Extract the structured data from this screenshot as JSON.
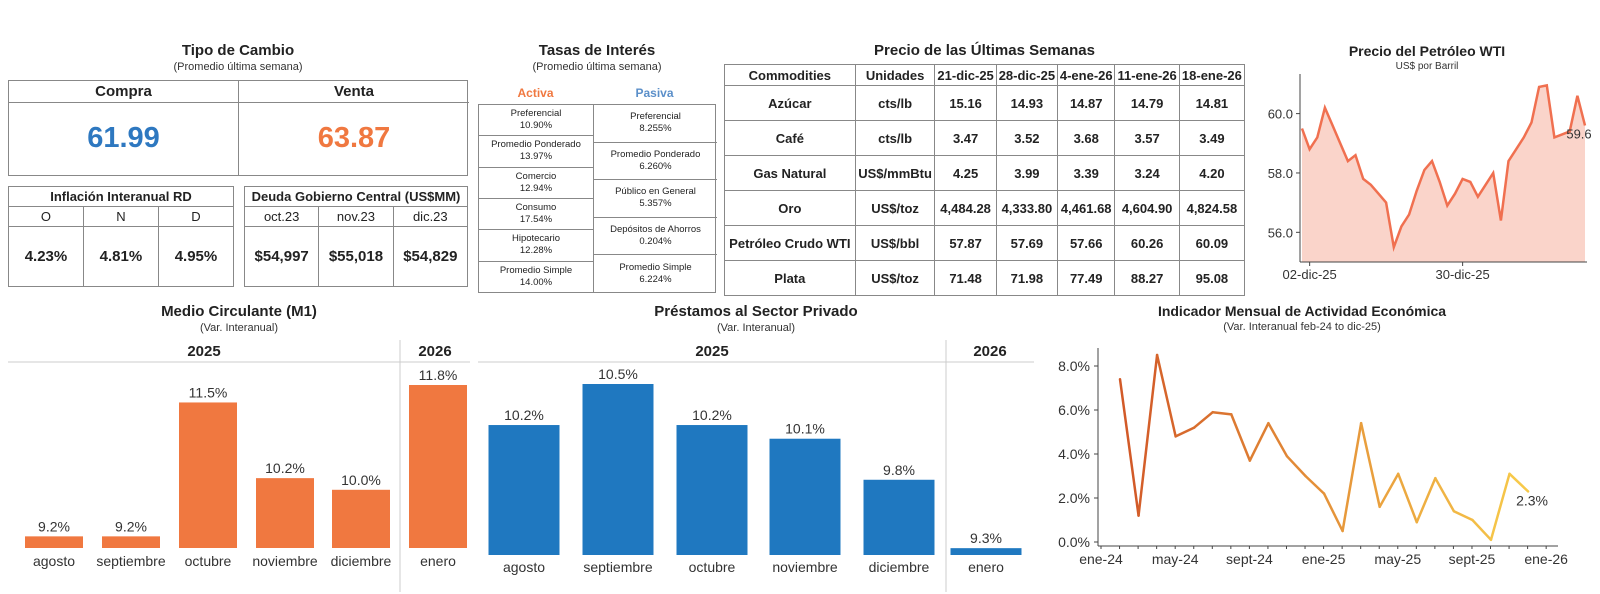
{
  "exchange": {
    "title": "Tipo de Cambio",
    "subtitle": "(Promedio última semana)",
    "buy_label": "Compra",
    "sell_label": "Venta",
    "buy_value": "61.99",
    "sell_value": "63.87",
    "buy_color": "#2e78c0",
    "sell_color": "#f07840"
  },
  "inflation": {
    "title": "Inflación Interanual RD",
    "months": [
      "O",
      "N",
      "D"
    ],
    "values": [
      "4.23%",
      "4.81%",
      "4.95%"
    ]
  },
  "debt": {
    "title": "Deuda Gobierno Central (US$MM)",
    "periods": [
      "oct.23",
      "nov.23",
      "dic.23"
    ],
    "values": [
      "$54,997",
      "$55,018",
      "$54,829"
    ]
  },
  "rates": {
    "title": "Tasas de Interés",
    "subtitle": "(Promedio última semana)",
    "active_label": "Activa",
    "passive_label": "Pasiva",
    "active_color": "#f07840",
    "passive_color": "#5b8fc9",
    "active": [
      {
        "name": "Preferencial",
        "value": "10.90%"
      },
      {
        "name": "Promedio Ponderado",
        "value": "13.97%"
      },
      {
        "name": "Comercio",
        "value": "12.94%"
      },
      {
        "name": "Consumo",
        "value": "17.54%"
      },
      {
        "name": "Hipotecario",
        "value": "12.28%"
      },
      {
        "name": "Promedio Simple",
        "value": "14.00%"
      }
    ],
    "passive": [
      {
        "name": "Preferencial",
        "value": "8.255%"
      },
      {
        "name": "Promedio Ponderado",
        "value": "6.260%"
      },
      {
        "name": "Público en General",
        "value": "5.357%"
      },
      {
        "name": "Depósitos de Ahorros",
        "value": "0.204%"
      },
      {
        "name": "Promedio Simple",
        "value": "6.224%"
      }
    ]
  },
  "commodities": {
    "title": "Precio de las Últimas Semanas",
    "header": [
      "Commodities",
      "Unidades",
      "21-dic-25",
      "28-dic-25",
      "4-ene-26",
      "11-ene-26",
      "18-ene-26"
    ],
    "rows": [
      [
        "Azúcar",
        "cts/lb",
        "15.16",
        "14.93",
        "14.87",
        "14.79",
        "14.81"
      ],
      [
        "Café",
        "cts/lb",
        "3.47",
        "3.52",
        "3.68",
        "3.57",
        "3.49"
      ],
      [
        "Gas Natural",
        "US$/mmBtu",
        "4.25",
        "3.99",
        "3.39",
        "3.24",
        "4.20"
      ],
      [
        "Oro",
        "US$/toz",
        "4,484.28",
        "4,333.80",
        "4,461.68",
        "4,604.90",
        "4,824.58"
      ],
      [
        "Petróleo Crudo WTI",
        "US$/bbl",
        "57.87",
        "57.69",
        "57.66",
        "60.26",
        "60.09"
      ],
      [
        "Plata",
        "US$/toz",
        "71.48",
        "71.98",
        "77.49",
        "88.27",
        "95.08"
      ]
    ]
  },
  "chart_data": [
    {
      "type": "area",
      "title": "Precio del Petróleo WTI",
      "subtitle": "US$ por Barril",
      "ylim": [
        55,
        61.2
      ],
      "yticks": [
        56,
        58,
        60
      ],
      "yticklabels": [
        "56.0",
        "58.0",
        "60.0"
      ],
      "xticklabels": [
        "02-dic-25",
        "30-dic-25"
      ],
      "xtick_index": [
        1,
        21
      ],
      "last_label": "59.6",
      "values": [
        59.5,
        58.8,
        59.2,
        60.2,
        59.6,
        59.0,
        58.4,
        58.6,
        57.8,
        57.6,
        57.3,
        57.0,
        55.5,
        56.2,
        56.6,
        57.4,
        58.1,
        58.4,
        57.7,
        56.9,
        57.3,
        57.8,
        57.7,
        57.2,
        57.6,
        58.0,
        56.4,
        58.4,
        58.8,
        59.2,
        59.7,
        60.9,
        60.95,
        59.2,
        59.3,
        59.4,
        60.6,
        59.6
      ],
      "color": "#f07050",
      "grid": false
    },
    {
      "type": "bar",
      "title": "Medio Circulante (M1)",
      "subtitle": "(Var. Interanual)",
      "groups": [
        {
          "name": "2025",
          "count": 5
        },
        {
          "name": "2026",
          "count": 1
        }
      ],
      "categories": [
        "agosto",
        "septiembre",
        "octubre",
        "noviembre",
        "diciembre",
        "enero"
      ],
      "values": [
        9.2,
        9.2,
        11.5,
        10.2,
        10.0,
        11.8
      ],
      "labels": [
        "9.2%",
        "9.2%",
        "11.5%",
        "10.2%",
        "10.0%",
        "11.8%"
      ],
      "ylim": [
        9.0,
        11.8
      ],
      "color": "#f07840"
    },
    {
      "type": "bar",
      "title": "Préstamos al Sector Privado",
      "subtitle": "(Var. Interanual)",
      "groups": [
        {
          "name": "2025",
          "count": 5
        },
        {
          "name": "2026",
          "count": 1
        }
      ],
      "categories": [
        "agosto",
        "septiembre",
        "octubre",
        "noviembre",
        "diciembre",
        "enero"
      ],
      "values": [
        10.2,
        10.5,
        10.2,
        10.1,
        9.8,
        9.3
      ],
      "labels": [
        "10.2%",
        "10.5%",
        "10.2%",
        "10.1%",
        "9.8%",
        "9.3%"
      ],
      "ylim": [
        9.25,
        10.5
      ],
      "color": "#1f78c0"
    },
    {
      "type": "line",
      "title": "Indicador Mensual de Actividad Económica",
      "subtitle": "(Var. Interanual feb-24 to dic-25)",
      "ylim": [
        0,
        9
      ],
      "yticks": [
        0,
        2,
        4,
        6,
        8
      ],
      "yticklabels": [
        "0.0%",
        "2.0%",
        "4.0%",
        "6.0%",
        "8.0%"
      ],
      "xticklabels": [
        "ene-24",
        "may-24",
        "sept-24",
        "ene-25",
        "may-25",
        "sept-25",
        "ene-26"
      ],
      "xtick_index": [
        0,
        4,
        8,
        12,
        16,
        20,
        24
      ],
      "values": [
        7.4,
        1.2,
        8.5,
        4.8,
        5.2,
        5.9,
        5.8,
        3.7,
        5.4,
        3.9,
        3.0,
        2.2,
        0.5,
        5.4,
        1.6,
        3.1,
        0.9,
        2.9,
        1.4,
        1.0,
        0.1,
        3.1,
        2.3
      ],
      "last_label": "2.3%",
      "color_start": "#d25a28",
      "color_end": "#f7c94a",
      "grid": false
    }
  ]
}
